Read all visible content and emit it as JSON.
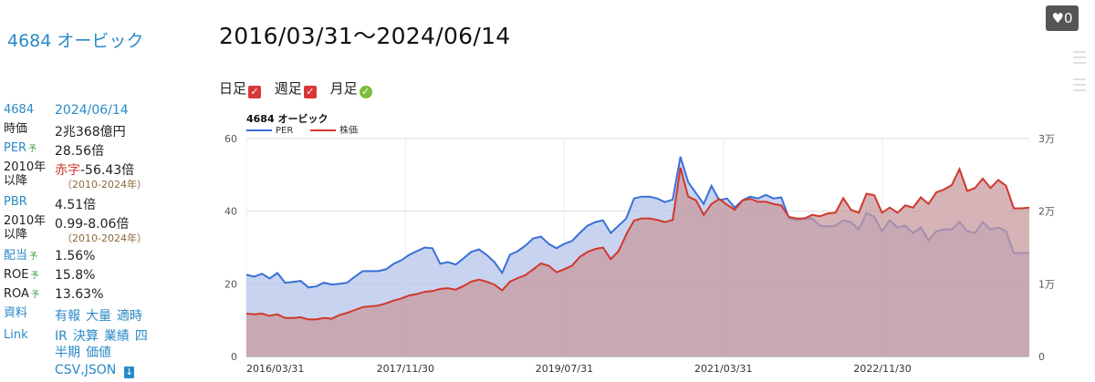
{
  "sidebar": {
    "company": "4684 オービック",
    "rows": [
      {
        "label": "4684",
        "value": "2024/06/14"
      },
      {
        "label": "時価",
        "value": "2兆368億円"
      },
      {
        "label": "PER",
        "mark": "予",
        "value": "28.56倍"
      },
      {
        "label": "2010年以降",
        "value_prefix": "赤字",
        "value": "-56.43倍",
        "sub": "（2010-2024年）"
      },
      {
        "label": "PBR",
        "value": "4.51倍"
      },
      {
        "label": "2010年以降",
        "value": "0.99-8.06倍",
        "sub": "（2010-2024年）"
      },
      {
        "label": "配当",
        "mark": "予",
        "value": "1.56%"
      },
      {
        "label": "ROE",
        "mark": "予",
        "value": "15.8%"
      },
      {
        "label": "ROA",
        "mark": "予",
        "value": "13.63%"
      }
    ],
    "docs_label": "資料",
    "docs_links": [
      "有報",
      "大量",
      "適時"
    ],
    "link_label": "Link",
    "link_links": [
      "IR",
      "決算",
      "業績",
      "四半期",
      "価値"
    ],
    "download_label": "CSV,JSON"
  },
  "header": {
    "period": "2016/03/31〜2024/06/14",
    "toggles": [
      {
        "label": "日足",
        "state": "checked"
      },
      {
        "label": "週足",
        "state": "checked"
      },
      {
        "label": "月足",
        "state": "ok"
      }
    ],
    "likes": "0"
  },
  "colors": {
    "per": "#3a6fd8",
    "price": "#d0382b",
    "per_fill": "#b6c6ea",
    "price_fill": "#c79a9f"
  },
  "chart_data": {
    "type": "area",
    "title": "4684 オービック",
    "legend_position": "top-left",
    "grid": true,
    "x_start": "2016/03/31",
    "x_end": "2024/06/14",
    "x_ticks": [
      "2016/03/31",
      "2017/11/30",
      "2019/07/31",
      "2021/03/31",
      "2022/11/30"
    ],
    "y_left": {
      "min": 0,
      "max": 60,
      "ticks": [
        0,
        20,
        40,
        60
      ]
    },
    "y_right": {
      "min": 0,
      "max": 30000,
      "ticks": [
        0,
        10000,
        20000,
        30000
      ],
      "tick_labels": [
        "0",
        "1万",
        "2万",
        "3万"
      ]
    },
    "series": [
      {
        "name": "PER",
        "axis": "left",
        "values": [
          22.5,
          22,
          22.8,
          21.5,
          23,
          20.3,
          20.5,
          20.8,
          19,
          19.3,
          20.3,
          19.8,
          20,
          20.3,
          22,
          23.5,
          23.5,
          23.5,
          24,
          25.5,
          26.5,
          28,
          29,
          30,
          29.8,
          25.5,
          26,
          25.3,
          27,
          28.8,
          29.5,
          28,
          26,
          23,
          28,
          29,
          30.5,
          32.5,
          33,
          31,
          29.8,
          31,
          31.8,
          34,
          36,
          37,
          37.5,
          34,
          36,
          38,
          43.5,
          44,
          44,
          43.5,
          42.5,
          43.2,
          55,
          48,
          45,
          42,
          47,
          43,
          43.5,
          41,
          43,
          44,
          43.5,
          44.5,
          43.5,
          43.8,
          38,
          37.5,
          38,
          38,
          36,
          35.8,
          36,
          37.5,
          37,
          35,
          39.5,
          38.5,
          34.5,
          37.5,
          35.5,
          36,
          34,
          35.5,
          32,
          34.5,
          35,
          35,
          37,
          34.5,
          34,
          37,
          35,
          35.5,
          34.5,
          28.5,
          28.5,
          28.5
        ]
      },
      {
        "name": "株価",
        "axis": "right",
        "values": [
          5900,
          5800,
          5900,
          5600,
          5800,
          5300,
          5300,
          5400,
          5100,
          5100,
          5300,
          5200,
          5700,
          6000,
          6400,
          6800,
          6900,
          7000,
          7300,
          7700,
          8000,
          8400,
          8600,
          8900,
          9000,
          9300,
          9400,
          9200,
          9700,
          10300,
          10600,
          10300,
          9900,
          9100,
          10300,
          10800,
          11200,
          12000,
          12800,
          12500,
          11600,
          12000,
          12500,
          13700,
          14400,
          14800,
          15000,
          13400,
          14500,
          16800,
          18700,
          19000,
          19000,
          18800,
          18500,
          18800,
          26000,
          22000,
          21500,
          19500,
          21000,
          21700,
          20900,
          20200,
          21500,
          21700,
          21300,
          21300,
          21000,
          20800,
          19200,
          19000,
          19000,
          19500,
          19300,
          19700,
          19800,
          21800,
          20200,
          19800,
          22400,
          22200,
          19800,
          20500,
          19800,
          20800,
          20500,
          21900,
          21000,
          22600,
          23000,
          23600,
          25800,
          22800,
          23200,
          24500,
          23200,
          24300,
          23500,
          20400,
          20400,
          20500
        ]
      }
    ]
  }
}
